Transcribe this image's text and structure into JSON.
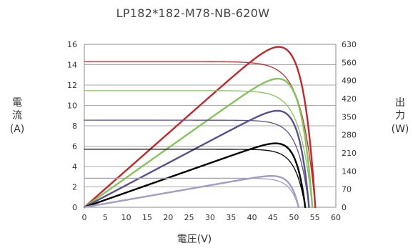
{
  "chart_data": {
    "type": "line",
    "title": "LP182*182-M78-NB-620W",
    "xlabel": "電圧(V)",
    "ylabel_left": [
      "電",
      "流",
      "(A)"
    ],
    "ylabel_right": [
      "出",
      "力",
      "(W)"
    ],
    "xlim": [
      0,
      60
    ],
    "ylim_left": [
      0,
      16
    ],
    "ylim_right": [
      0,
      630
    ],
    "x_ticks": [
      0,
      5,
      10,
      15,
      20,
      25,
      30,
      35,
      40,
      45,
      50,
      55,
      60
    ],
    "y_left_ticks": [
      0,
      2,
      4,
      6,
      8,
      10,
      12,
      14,
      16
    ],
    "y_right_ticks": [
      0,
      70,
      140,
      210,
      280,
      350,
      420,
      490,
      560,
      630
    ],
    "grid": true,
    "series": [
      {
        "color": "#c0282d",
        "isc": 14.3,
        "voc": 55.1,
        "pmax_v": 45.8,
        "pmax_w": 620
      },
      {
        "color": "#86c35a",
        "isc": 11.45,
        "voc": 54.4,
        "pmax_v": 46.0,
        "pmax_w": 497
      },
      {
        "color": "#5b4f8a",
        "isc": 8.55,
        "voc": 53.6,
        "pmax_v": 46.2,
        "pmax_w": 373
      },
      {
        "color": "#000000",
        "isc": 5.7,
        "voc": 52.7,
        "pmax_v": 46.0,
        "pmax_w": 247
      },
      {
        "color": "#a39cc4",
        "isc": 2.85,
        "voc": 51.1,
        "pmax_v": 45.6,
        "pmax_w": 121
      }
    ]
  }
}
